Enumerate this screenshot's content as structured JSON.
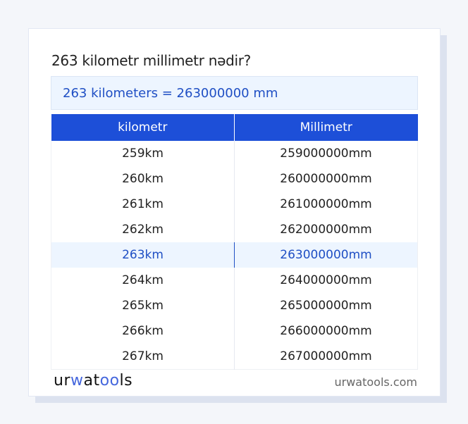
{
  "title": "263 kilometr millimetr nədir?",
  "result": "263 kilometers = 263000000 mm",
  "table": {
    "headers": [
      "kilometr",
      "Millimetr"
    ],
    "rows": [
      [
        "259km",
        "259000000mm"
      ],
      [
        "260km",
        "260000000mm"
      ],
      [
        "261km",
        "261000000mm"
      ],
      [
        "262km",
        "262000000mm"
      ],
      [
        "263km",
        "263000000mm"
      ],
      [
        "264km",
        "264000000mm"
      ],
      [
        "265km",
        "265000000mm"
      ],
      [
        "266km",
        "266000000mm"
      ],
      [
        "267km",
        "267000000mm"
      ]
    ],
    "highlighted_row": 4
  },
  "footer": {
    "logo": "urwatools",
    "site": "urwatools.com"
  },
  "colors": {
    "accent": "#1d4fd8",
    "highlight_bg": "#edf5ff"
  }
}
